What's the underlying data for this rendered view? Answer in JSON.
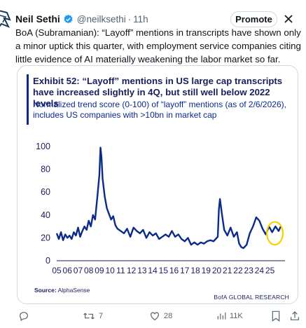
{
  "author": {
    "name": "Neil Sethi",
    "handle": "@neilksethi",
    "time": "11h"
  },
  "header": {
    "promote_label": "Promote"
  },
  "tweet": {
    "text": "BoA (Subramanian): “Layoff” mentions in transcripts have shown only a minor uptick this quarter, with employment service companies citing little evidence of AI materially weakening the labor market so far."
  },
  "card": {
    "exhibit_title": "Exhibit 52: “Layoff” mentions in US large cap transcripts have increased slightly in 4Q, but still well below 2022 levels",
    "subtitle": "Normalized trend score (0-100) of “layoff” mentions (as of 2/6/2026), includes US companies with >10bn in market cap",
    "source_label": "Source:",
    "source_name": "AlphaSense",
    "credit": "BofA GLOBAL RESEARCH"
  },
  "chart_data": {
    "type": "line",
    "title": "",
    "xlabel": "",
    "ylabel": "",
    "ylim": [
      0,
      100
    ],
    "y_ticks": [
      0,
      20,
      40,
      60,
      80,
      100
    ],
    "xlim": [
      2005,
      2026.4
    ],
    "x_ticks": [
      "05",
      "06",
      "07",
      "08",
      "09",
      "10",
      "11",
      "12",
      "13",
      "14",
      "15",
      "16",
      "17",
      "18",
      "19",
      "20",
      "21",
      "22",
      "23",
      "24",
      "25"
    ],
    "series_color": "#0a2a8c",
    "highlight_color": "#f5d000",
    "highlight": {
      "x_range": [
        2024.7,
        2026.2
      ],
      "y_range": [
        14,
        34
      ]
    },
    "series": [
      {
        "x": [
          2005.0,
          2005.2,
          2005.4,
          2005.6,
          2005.8,
          2006.0,
          2006.2,
          2006.4,
          2006.6,
          2006.8,
          2007.0,
          2007.2,
          2007.4,
          2007.6,
          2007.8,
          2008.0,
          2008.2,
          2008.4,
          2008.6,
          2008.8,
          2009.0,
          2009.1,
          2009.2,
          2009.3,
          2009.5,
          2009.7,
          2009.9,
          2010.1,
          2010.3,
          2010.5,
          2010.7,
          2011.0,
          2011.3,
          2011.6,
          2011.9,
          2012.2,
          2012.5,
          2012.8,
          2013.1,
          2013.4,
          2013.7,
          2014.0,
          2014.3,
          2014.6,
          2014.9,
          2015.2,
          2015.5,
          2015.8,
          2016.1,
          2016.4,
          2016.7,
          2017.0,
          2017.3,
          2017.6,
          2017.9,
          2018.2,
          2018.5,
          2018.8,
          2019.1,
          2019.4,
          2019.7,
          2019.9,
          2020.1,
          2020.2,
          2020.3,
          2020.5,
          2020.7,
          2021.0,
          2021.3,
          2021.6,
          2021.9,
          2022.1,
          2022.3,
          2022.5,
          2022.8,
          2023.1,
          2023.4,
          2023.7,
          2024.0,
          2024.3,
          2024.6,
          2024.9,
          2025.2,
          2025.5,
          2025.8,
          2026.0
        ],
        "y": [
          24,
          19,
          25,
          18,
          23,
          20,
          22,
          19,
          25,
          22,
          29,
          21,
          26,
          30,
          27,
          35,
          30,
          40,
          36,
          55,
          75,
          99,
          90,
          72,
          56,
          46,
          41,
          36,
          39,
          31,
          28,
          26,
          24,
          28,
          21,
          29,
          26,
          24,
          27,
          20,
          25,
          22,
          24,
          19,
          21,
          23,
          21,
          26,
          21,
          23,
          19,
          17,
          20,
          14,
          16,
          14,
          16,
          15,
          17,
          18,
          17,
          19,
          21,
          45,
          54,
          40,
          27,
          22,
          29,
          21,
          25,
          15,
          12,
          11,
          14,
          24,
          30,
          38,
          35,
          28,
          23,
          30,
          25,
          30,
          26,
          30
        ]
      }
    ]
  },
  "actions": {
    "replies": "",
    "reposts": "7",
    "likes": "28",
    "views": "11K"
  },
  "icons": [
    "avatar-logo-icon",
    "verified-badge-icon",
    "close-icon",
    "reply-icon",
    "repost-icon",
    "like-icon",
    "views-icon",
    "bookmark-icon",
    "share-icon"
  ]
}
